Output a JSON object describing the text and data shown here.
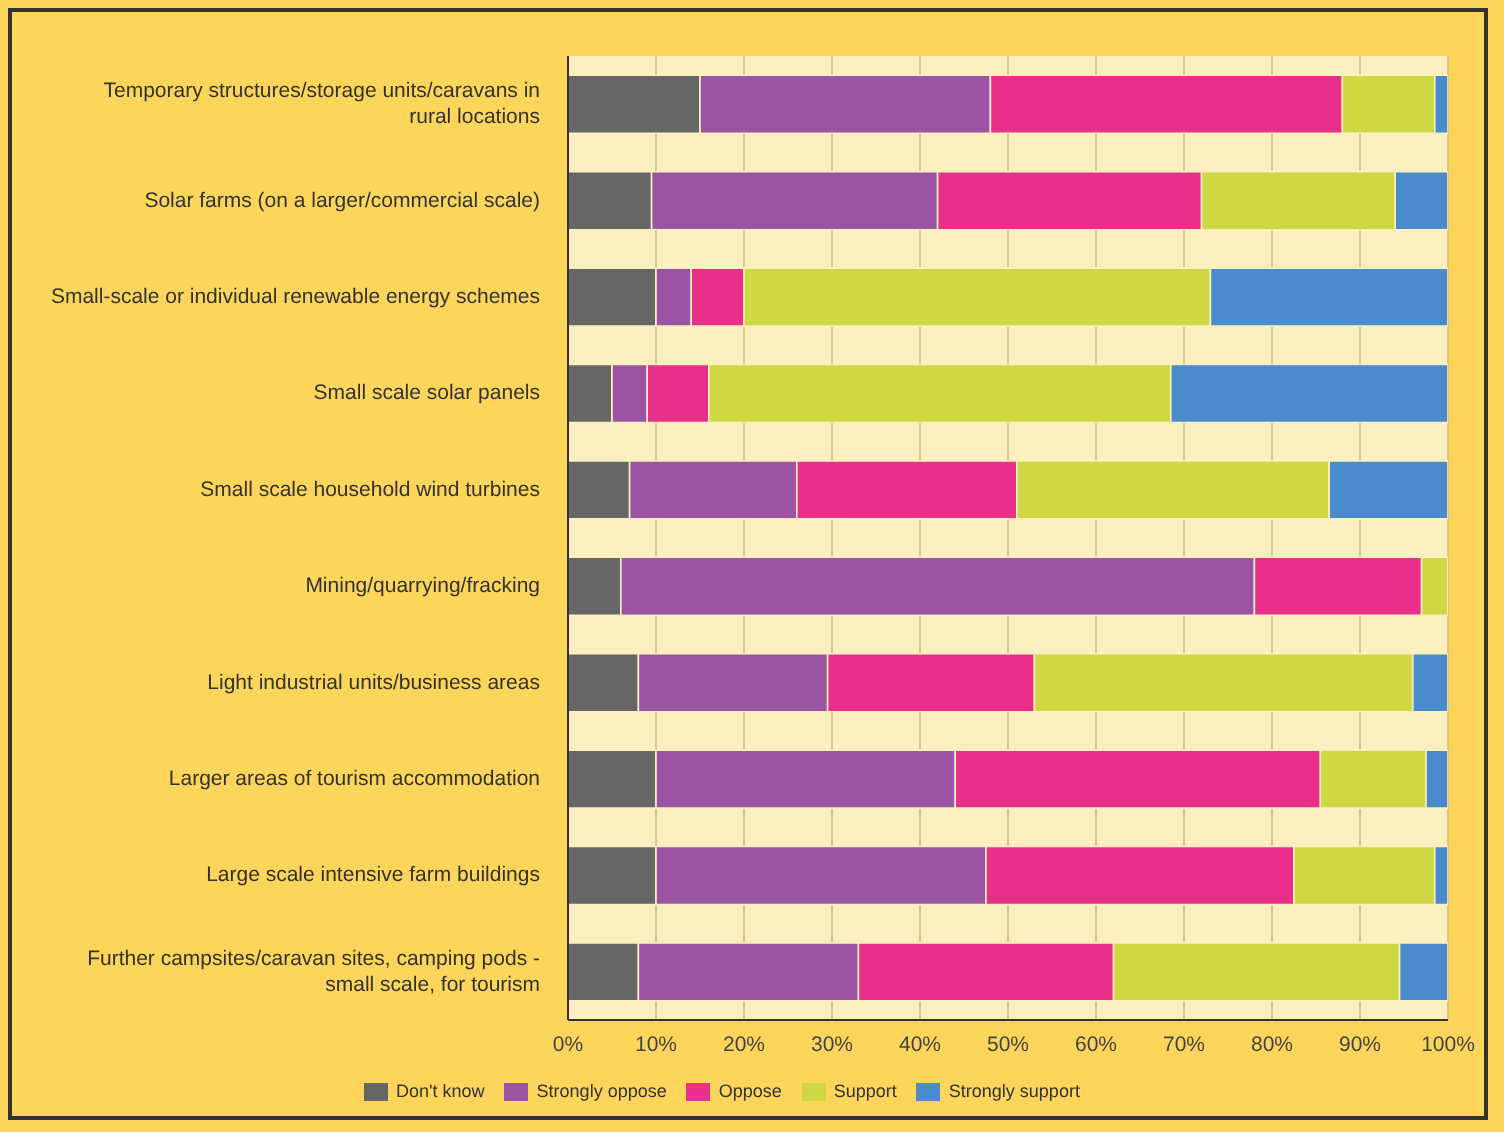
{
  "chart_data": {
    "type": "bar",
    "orientation": "horizontal",
    "stacked": true,
    "categories": [
      "Temporary structures/storage units/caravans in rural locations",
      "Solar farms (on a larger/commercial scale)",
      "Small-scale or individual renewable energy schemes",
      "Small scale solar panels",
      "Small scale household wind turbines",
      "Mining/quarrying/fracking",
      "Light industrial units/business areas",
      "Larger areas of tourism accommodation",
      "Large scale intensive farm buildings",
      "Further campsites/caravan sites, camping pods - small scale, for tourism"
    ],
    "series": [
      {
        "name": "Don't know",
        "color": "#666666",
        "values": [
          15,
          9.5,
          10,
          5,
          7,
          6,
          8,
          10,
          10,
          8
        ]
      },
      {
        "name": "Strongly oppose",
        "color": "#9b54a3",
        "values": [
          33,
          32.5,
          4,
          4,
          19,
          72,
          21.5,
          34,
          37.5,
          25
        ]
      },
      {
        "name": "Oppose",
        "color": "#e8308a",
        "values": [
          40,
          30,
          6,
          7,
          25,
          19,
          23.5,
          41.5,
          35,
          29
        ]
      },
      {
        "name": "Support",
        "color": "#cdd843",
        "values": [
          10.5,
          22,
          53,
          52.5,
          35.5,
          3,
          43,
          12,
          16,
          32.5
        ]
      },
      {
        "name": "Strongly support",
        "color": "#4a8ccb",
        "values": [
          1.5,
          6,
          27,
          31.5,
          13.5,
          0,
          4,
          2.5,
          1.5,
          5.5
        ]
      }
    ],
    "xlim": [
      0,
      100
    ],
    "xticks": [
      {
        "value": 0,
        "label": "0%"
      },
      {
        "value": 10,
        "label": "10%"
      },
      {
        "value": 20,
        "label": "20%"
      },
      {
        "value": 30,
        "label": "30%"
      },
      {
        "value": 40,
        "label": "40%"
      },
      {
        "value": 50,
        "label": "50%"
      },
      {
        "value": 60,
        "label": "60%"
      },
      {
        "value": 70,
        "label": "70%"
      },
      {
        "value": 80,
        "label": "80%"
      },
      {
        "value": 90,
        "label": "90%"
      },
      {
        "value": 100,
        "label": "100%"
      }
    ],
    "grid": "x",
    "legend": "bottom"
  }
}
